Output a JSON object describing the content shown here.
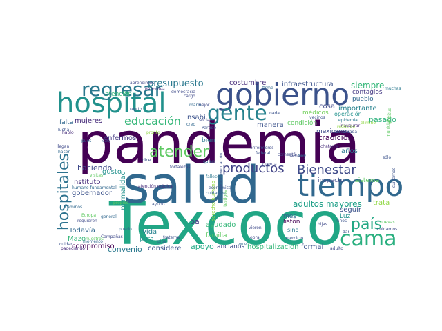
{
  "palette": {
    "purple": "#440154",
    "indigo": "#3b528b",
    "blue": "#31688e",
    "teal": "#21918c",
    "green": "#35b779",
    "lime": "#90d743",
    "yellow": "#d5e21a"
  },
  "words": [
    {
      "text": "pandemia",
      "color": "#440154"
    },
    {
      "text": "Texcoco",
      "color": "#21a685"
    },
    {
      "text": "salud",
      "color": "#31688e"
    },
    {
      "text": "gobierno",
      "color": "#3b528b"
    },
    {
      "text": "hospital",
      "color": "#21918c"
    },
    {
      "text": "tiempo",
      "color": "#31688e"
    },
    {
      "text": "cama",
      "color": "#29af7f"
    },
    {
      "text": "gente",
      "color": "#26828e"
    },
    {
      "text": "regresar",
      "color": "#2a788e"
    },
    {
      "text": "hospitales",
      "color": "#2c728e"
    },
    {
      "text": "atender",
      "color": "#5ec962"
    },
    {
      "text": "Bienestar",
      "color": "#3e4a89"
    },
    {
      "text": "país",
      "color": "#22a884"
    },
    {
      "text": "productos",
      "color": "#414487"
    },
    {
      "text": "educación",
      "color": "#35b779"
    },
    {
      "text": "presupuesto",
      "color": "#2a788e"
    },
    {
      "text": "costumbre",
      "color": "#472c7a"
    },
    {
      "text": "infraestructura",
      "color": "#3b528b"
    },
    {
      "text": "siempre",
      "color": "#35b779"
    },
    {
      "text": "contagios",
      "color": "#443983"
    },
    {
      "text": "pueblo",
      "color": "#31688e"
    },
    {
      "text": "cosa",
      "color": "#3e4989"
    },
    {
      "text": "importante",
      "color": "#26828e"
    },
    {
      "text": "médicos",
      "color": "#70cf57"
    },
    {
      "text": "operación",
      "color": "#21918c"
    },
    {
      "text": "pasado",
      "color": "#2db27d"
    },
    {
      "text": "tradición",
      "color": "#440154"
    },
    {
      "text": "años",
      "color": "#2a788e"
    },
    {
      "text": "adultos mayores",
      "color": "#1fa088"
    },
    {
      "text": "seguir",
      "color": "#3b528b"
    },
    {
      "text": "inspector",
      "color": "#3e4a89"
    },
    {
      "text": "sistema",
      "color": "#5ec962"
    },
    {
      "text": "trata",
      "color": "#90d743"
    },
    {
      "text": "Luz",
      "color": "#21918c"
    },
    {
      "text": "mes",
      "color": "#31688e"
    },
    {
      "text": "listón",
      "color": "#440154"
    },
    {
      "text": "sino",
      "color": "#2a788e"
    },
    {
      "text": "hospitalización",
      "color": "#35b779"
    },
    {
      "text": "formal",
      "color": "#3b528b"
    },
    {
      "text": "ancianos",
      "color": "#3e4989"
    },
    {
      "text": "apoyo",
      "color": "#22a884"
    },
    {
      "text": "ayudado",
      "color": "#35b779"
    },
    {
      "text": "familia",
      "color": "#5ec962"
    },
    {
      "text": "iba",
      "color": "#443983"
    },
    {
      "text": "considere",
      "color": "#3b528b"
    },
    {
      "text": "vida",
      "color": "#26828e"
    },
    {
      "text": "pura",
      "color": "#21918c"
    },
    {
      "text": "convenio",
      "color": "#2a788e"
    },
    {
      "text": "compromiso",
      "color": "#440154"
    },
    {
      "text": "Mazo",
      "color": "#35b779"
    },
    {
      "text": "Todavía",
      "color": "#31688e"
    },
    {
      "text": "gobernador",
      "color": "#3b528b"
    },
    {
      "text": "Instituto",
      "color": "#472c7a"
    },
    {
      "text": "humano fundamental",
      "color": "#31688e"
    },
    {
      "text": "haciendo",
      "color": "#3e4989"
    },
    {
      "text": "gusto",
      "color": "#21918c"
    },
    {
      "text": "normalidad",
      "color": "#21918c"
    },
    {
      "text": "enfermos",
      "color": "#443983"
    },
    {
      "text": "mujeres",
      "color": "#472c7a"
    },
    {
      "text": "falta",
      "color": "#31688e"
    },
    {
      "text": "atención",
      "color": "#35b779"
    },
    {
      "text": "Insabi",
      "color": "#3b528b"
    },
    {
      "text": "bien",
      "color": "#2a788e"
    },
    {
      "text": "manera",
      "color": "#3b528b"
    },
    {
      "text": "condición",
      "color": "#5ec962"
    },
    {
      "text": "mexicanos",
      "color": "#3e4a89"
    },
    {
      "text": "atención médica",
      "color": "#472c7a"
    },
    {
      "text": "derecho humano",
      "color": "#90d743"
    },
    {
      "text": "buena alimentación",
      "color": "#3b528b"
    },
    {
      "text": "deportiva",
      "color": "#472c7a"
    },
    {
      "text": "democracia",
      "color": "#3e4a89"
    },
    {
      "text": "firme",
      "color": "#31688e"
    },
    {
      "text": "muchas",
      "color": "#2a788e"
    },
    {
      "text": "epidemia",
      "color": "#2a788e"
    },
    {
      "text": "inaugurar",
      "color": "#472c7a"
    },
    {
      "text": "enfermeros",
      "color": "#3e4989"
    },
    {
      "text": "chatarra",
      "color": "#472c7a"
    },
    {
      "text": "cuidarnos",
      "color": "#3b528b"
    },
    {
      "text": "Europa",
      "color": "#5ec962"
    },
    {
      "text": "general",
      "color": "#31688e"
    },
    {
      "text": "Campañas",
      "color": "#3e4989"
    },
    {
      "text": "fallecen",
      "color": "#2a788e"
    },
    {
      "text": "económica",
      "color": "#3b528b"
    },
    {
      "text": "cuidamos",
      "color": "#31688e"
    },
    {
      "text": "fraterna",
      "color": "#3b528b"
    },
    {
      "text": "ejercicio",
      "color": "#3b528b"
    },
    {
      "text": "hijas",
      "color": "#3e4989"
    },
    {
      "text": "dar",
      "color": "#3b528b"
    },
    {
      "text": "adulto",
      "color": "#3e4989"
    },
    {
      "text": "momento",
      "color": "#31688e"
    },
    {
      "text": "padeciendo",
      "color": "#472c7a"
    },
    {
      "text": "requieren",
      "color": "#3e4989"
    },
    {
      "text": "cuidar",
      "color": "#3b528b"
    },
    {
      "text": "pues",
      "color": "#31688e"
    },
    {
      "text": "hablo",
      "color": "#472c7a"
    },
    {
      "text": "Partido",
      "color": "#3b528b"
    },
    {
      "text": "social",
      "color": "#3e4989"
    },
    {
      "text": "tomo",
      "color": "#31688e"
    },
    {
      "text": "lucha",
      "color": "#3b528b"
    },
    {
      "text": "llegan",
      "color": "#3e4989"
    },
    {
      "text": "visitas",
      "color": "#5ec962"
    },
    {
      "text": "hacen",
      "color": "#31688e"
    },
    {
      "text": "pronto",
      "color": "#90d743"
    },
    {
      "text": "mejor",
      "color": "#3e4989"
    },
    {
      "text": "ayudó",
      "color": "#3b528b"
    },
    {
      "text": "propios",
      "color": "#5ec962"
    },
    {
      "text": "caminos",
      "color": "#31688e"
    },
    {
      "text": "temporada",
      "color": "#3b528b"
    },
    {
      "text": "reducido",
      "color": "#90d743"
    },
    {
      "text": "repito",
      "color": "#3b528b"
    },
    {
      "text": "creo",
      "color": "#31688e"
    },
    {
      "text": "llamado",
      "color": "#3e4989"
    },
    {
      "text": "federal",
      "color": "#3b528b"
    },
    {
      "text": "elimino",
      "color": "#90d743"
    },
    {
      "text": "fortalezas",
      "color": "#3e4989"
    },
    {
      "text": "testigos",
      "color": "#5ec962"
    },
    {
      "text": "pipa",
      "color": "#31688e"
    },
    {
      "text": "cargo",
      "color": "#3e4989"
    },
    {
      "text": "vecinos",
      "color": "#3b528b"
    },
    {
      "text": "nuestros",
      "color": "#5ec962"
    },
    {
      "text": "puedo",
      "color": "#31688e"
    },
    {
      "text": "vieron",
      "color": "#3e4989"
    },
    {
      "text": "casi",
      "color": "#3b528b"
    },
    {
      "text": "gratitud",
      "color": "#5ec962"
    },
    {
      "text": "obra",
      "color": "#3e4989"
    },
    {
      "text": "niños",
      "color": "#3b528b"
    },
    {
      "text": "nuevas",
      "color": "#5ec962"
    },
    {
      "text": "quien",
      "color": "#31688e"
    },
    {
      "text": "cuenta",
      "color": "#3e4989"
    },
    {
      "text": "dice",
      "color": "#3b528b"
    },
    {
      "text": "mano",
      "color": "#31688e"
    },
    {
      "text": "municipio",
      "color": "#5ec962"
    },
    {
      "text": "comentó",
      "color": "#3e4989"
    },
    {
      "text": "nada",
      "color": "#3b528b"
    },
    {
      "text": "hoy",
      "color": "#31688e"
    },
    {
      "text": "aprendimos",
      "color": "#3e4989"
    },
    {
      "text": "sólo",
      "color": "#3b528b"
    },
    {
      "text": "cuidarnos",
      "color": "#3e4989"
    }
  ]
}
